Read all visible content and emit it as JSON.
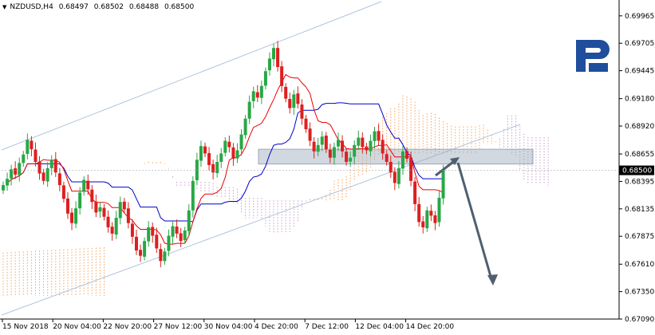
{
  "header": {
    "symbol": "NZDUSD,H4",
    "open": "0.68497",
    "high": "0.68502",
    "low": "0.68488",
    "close": "0.68500",
    "icon": "triangle-down-icon"
  },
  "logo": {
    "name": "brand-logo",
    "color": "#1f4e9c"
  },
  "colors": {
    "bull": "#28a745",
    "bear": "#dd1f1f",
    "kijun": "#0000cc",
    "tenkan": "#ee0000",
    "cloud_a": "#f4a460",
    "cloud_b": "#c8a2c8",
    "channel": "#b0c4de",
    "zone": "#9aa9b8",
    "arrow": "#4f5f6f",
    "grid": "#c8c8c8",
    "price_label_bg": "#000000"
  },
  "chart_data": {
    "type": "candlestick",
    "symbol": "NZDUSD",
    "timeframe": "H4",
    "y_ticks": [
      "0.69965",
      "0.69705",
      "0.69445",
      "0.69180",
      "0.68920",
      "0.68655",
      "0.68395",
      "0.68135",
      "0.67875",
      "0.67610",
      "0.67350",
      "0.67090"
    ],
    "y_range": [
      0.6709,
      0.701
    ],
    "current_price": "0.68500",
    "x_ticks": [
      "15 Nov 2018",
      "20 Nov 04:00",
      "22 Nov 20:00",
      "27 Nov 12:00",
      "30 Nov 04:00",
      "4 Dec 20:00",
      "7 Dec 12:00",
      "12 Dec 04:00",
      "14 Dec 20:00"
    ],
    "indicator": "Ichimoku Kinko Hyo",
    "candles": {
      "count": 110,
      "close": [
        0.6836,
        0.6842,
        0.6851,
        0.6846,
        0.6857,
        0.6865,
        0.6879,
        0.687,
        0.6858,
        0.6847,
        0.684,
        0.6852,
        0.686,
        0.6848,
        0.6836,
        0.6823,
        0.6809,
        0.68,
        0.6814,
        0.6829,
        0.6841,
        0.6832,
        0.682,
        0.681,
        0.6815,
        0.6806,
        0.6796,
        0.679,
        0.6805,
        0.682,
        0.6813,
        0.68,
        0.6787,
        0.6774,
        0.6769,
        0.6783,
        0.6796,
        0.6788,
        0.6776,
        0.6764,
        0.6773,
        0.6788,
        0.6797,
        0.679,
        0.6783,
        0.6793,
        0.6812,
        0.684,
        0.686,
        0.6873,
        0.6866,
        0.6855,
        0.6848,
        0.6858,
        0.6866,
        0.6878,
        0.6872,
        0.6861,
        0.6869,
        0.6884,
        0.6899,
        0.6915,
        0.6925,
        0.6919,
        0.693,
        0.6944,
        0.6956,
        0.6966,
        0.6948,
        0.693,
        0.6918,
        0.6909,
        0.6922,
        0.6913,
        0.6899,
        0.6889,
        0.6878,
        0.6868,
        0.6874,
        0.6882,
        0.687,
        0.6862,
        0.6872,
        0.6879,
        0.6868,
        0.6858,
        0.6862,
        0.6874,
        0.6881,
        0.6872,
        0.6869,
        0.6878,
        0.6887,
        0.6878,
        0.6866,
        0.6858,
        0.6848,
        0.6838,
        0.6852,
        0.6868,
        0.6861,
        0.684,
        0.6818,
        0.6801,
        0.6796,
        0.6812,
        0.6807,
        0.68,
        0.6824,
        0.685
      ]
    },
    "annotations": {
      "resistance_zone": [
        0.6856,
        0.687
      ],
      "forecast": "up to ~0.6868 then down to ~0.6735"
    }
  }
}
